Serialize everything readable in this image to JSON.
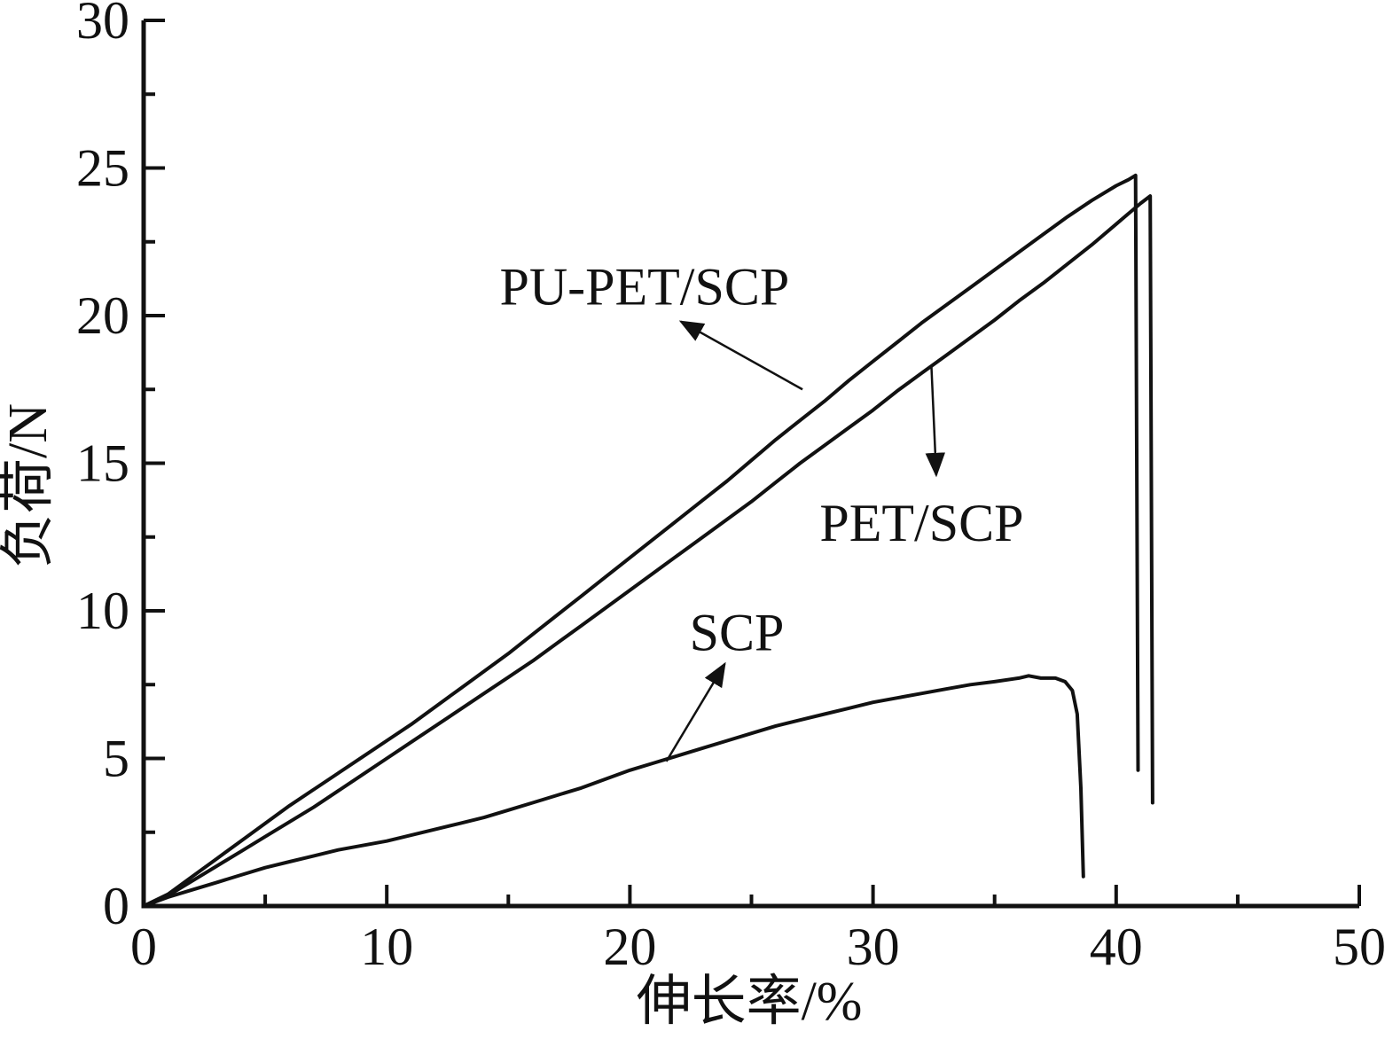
{
  "figure": {
    "background": "#ffffff",
    "ink_color": "#111111"
  },
  "chart_data": {
    "type": "line",
    "title": "",
    "xlabel": "伸长率/%",
    "ylabel": "负荷/N",
    "xlim": [
      0,
      50
    ],
    "ylim": [
      0,
      30
    ],
    "x_major_ticks": [
      0,
      10,
      20,
      30,
      40,
      50
    ],
    "x_minor_ticks": [
      5,
      15,
      25,
      35,
      45
    ],
    "y_major_ticks": [
      0,
      5,
      10,
      15,
      20,
      25,
      30
    ],
    "y_minor_ticks": [
      2.5,
      7.5,
      12.5,
      17.5,
      22.5,
      27.5
    ],
    "grid": false,
    "legend_position": "none",
    "series": [
      {
        "name": "PU-PET/SCP",
        "points": [
          [
            0,
            0
          ],
          [
            1,
            0.4
          ],
          [
            2,
            1.0
          ],
          [
            3,
            1.6
          ],
          [
            4,
            2.2
          ],
          [
            5,
            2.8
          ],
          [
            6,
            3.4
          ],
          [
            7,
            3.95
          ],
          [
            8,
            4.5
          ],
          [
            9,
            5.05
          ],
          [
            10,
            5.6
          ],
          [
            11,
            6.15
          ],
          [
            12,
            6.75
          ],
          [
            13,
            7.35
          ],
          [
            14,
            7.95
          ],
          [
            15,
            8.55
          ],
          [
            16,
            9.2
          ],
          [
            17,
            9.85
          ],
          [
            18,
            10.5
          ],
          [
            19,
            11.15
          ],
          [
            20,
            11.8
          ],
          [
            21,
            12.45
          ],
          [
            22,
            13.1
          ],
          [
            23,
            13.75
          ],
          [
            24,
            14.4
          ],
          [
            25,
            15.1
          ],
          [
            26,
            15.8
          ],
          [
            27,
            16.45
          ],
          [
            28,
            17.1
          ],
          [
            29,
            17.8
          ],
          [
            30,
            18.45
          ],
          [
            31,
            19.1
          ],
          [
            32,
            19.75
          ],
          [
            33,
            20.35
          ],
          [
            34,
            20.95
          ],
          [
            35,
            21.55
          ],
          [
            36,
            22.15
          ],
          [
            37,
            22.75
          ],
          [
            38,
            23.35
          ],
          [
            39,
            23.9
          ],
          [
            40,
            24.4
          ],
          [
            40.5,
            24.6
          ],
          [
            40.8,
            24.75
          ],
          [
            40.9,
            4.6
          ]
        ]
      },
      {
        "name": "PET/SCP",
        "points": [
          [
            0,
            0
          ],
          [
            1,
            0.35
          ],
          [
            2,
            0.85
          ],
          [
            3,
            1.35
          ],
          [
            4,
            1.85
          ],
          [
            5,
            2.35
          ],
          [
            6,
            2.85
          ],
          [
            7,
            3.35
          ],
          [
            8,
            3.9
          ],
          [
            9,
            4.45
          ],
          [
            10,
            5.0
          ],
          [
            11,
            5.55
          ],
          [
            12,
            6.1
          ],
          [
            13,
            6.65
          ],
          [
            14,
            7.2
          ],
          [
            15,
            7.75
          ],
          [
            16,
            8.3
          ],
          [
            17,
            8.9
          ],
          [
            18,
            9.5
          ],
          [
            19,
            10.1
          ],
          [
            20,
            10.7
          ],
          [
            21,
            11.3
          ],
          [
            22,
            11.9
          ],
          [
            23,
            12.5
          ],
          [
            24,
            13.1
          ],
          [
            25,
            13.7
          ],
          [
            26,
            14.35
          ],
          [
            27,
            15.0
          ],
          [
            28,
            15.6
          ],
          [
            29,
            16.2
          ],
          [
            30,
            16.8
          ],
          [
            31,
            17.45
          ],
          [
            32,
            18.05
          ],
          [
            33,
            18.65
          ],
          [
            34,
            19.25
          ],
          [
            35,
            19.85
          ],
          [
            36,
            20.5
          ],
          [
            37,
            21.1
          ],
          [
            38,
            21.75
          ],
          [
            39,
            22.4
          ],
          [
            40,
            23.1
          ],
          [
            41,
            23.8
          ],
          [
            41.4,
            24.05
          ],
          [
            41.5,
            3.5
          ]
        ]
      },
      {
        "name": "SCP",
        "points": [
          [
            0,
            0
          ],
          [
            1,
            0.3
          ],
          [
            2,
            0.55
          ],
          [
            3,
            0.8
          ],
          [
            4,
            1.05
          ],
          [
            5,
            1.3
          ],
          [
            6,
            1.5
          ],
          [
            7,
            1.7
          ],
          [
            8,
            1.9
          ],
          [
            9,
            2.05
          ],
          [
            10,
            2.2
          ],
          [
            11,
            2.4
          ],
          [
            12,
            2.6
          ],
          [
            13,
            2.8
          ],
          [
            14,
            3.0
          ],
          [
            15,
            3.25
          ],
          [
            16,
            3.5
          ],
          [
            17,
            3.75
          ],
          [
            18,
            4.0
          ],
          [
            19,
            4.3
          ],
          [
            20,
            4.6
          ],
          [
            21,
            4.85
          ],
          [
            22,
            5.1
          ],
          [
            23,
            5.35
          ],
          [
            24,
            5.6
          ],
          [
            25,
            5.85
          ],
          [
            26,
            6.1
          ],
          [
            27,
            6.3
          ],
          [
            28,
            6.5
          ],
          [
            29,
            6.7
          ],
          [
            30,
            6.9
          ],
          [
            31,
            7.05
          ],
          [
            32,
            7.2
          ],
          [
            33,
            7.35
          ],
          [
            34,
            7.5
          ],
          [
            35,
            7.6
          ],
          [
            36,
            7.72
          ],
          [
            36.4,
            7.8
          ],
          [
            36.9,
            7.72
          ],
          [
            37.5,
            7.72
          ],
          [
            37.9,
            7.6
          ],
          [
            38.2,
            7.3
          ],
          [
            38.4,
            6.5
          ],
          [
            38.55,
            4.0
          ],
          [
            38.65,
            1.0
          ]
        ]
      }
    ],
    "annotations": [
      {
        "label": "PU-PET/SCP",
        "label_x": 20.6,
        "label_y": 21.0,
        "arrow_tail_x": 27.1,
        "arrow_tail_y": 17.5,
        "arrow_head_x": 22.1,
        "arrow_head_y": 19.8
      },
      {
        "label": "PET/SCP",
        "label_x": 32.0,
        "label_y": 13.0,
        "arrow_tail_x": 32.4,
        "arrow_tail_y": 18.3,
        "arrow_head_x": 32.6,
        "arrow_head_y": 14.6
      },
      {
        "label": "SCP",
        "label_x": 24.4,
        "label_y": 9.3,
        "arrow_tail_x": 21.5,
        "arrow_tail_y": 4.9,
        "arrow_head_x": 23.9,
        "arrow_head_y": 8.2
      }
    ]
  }
}
